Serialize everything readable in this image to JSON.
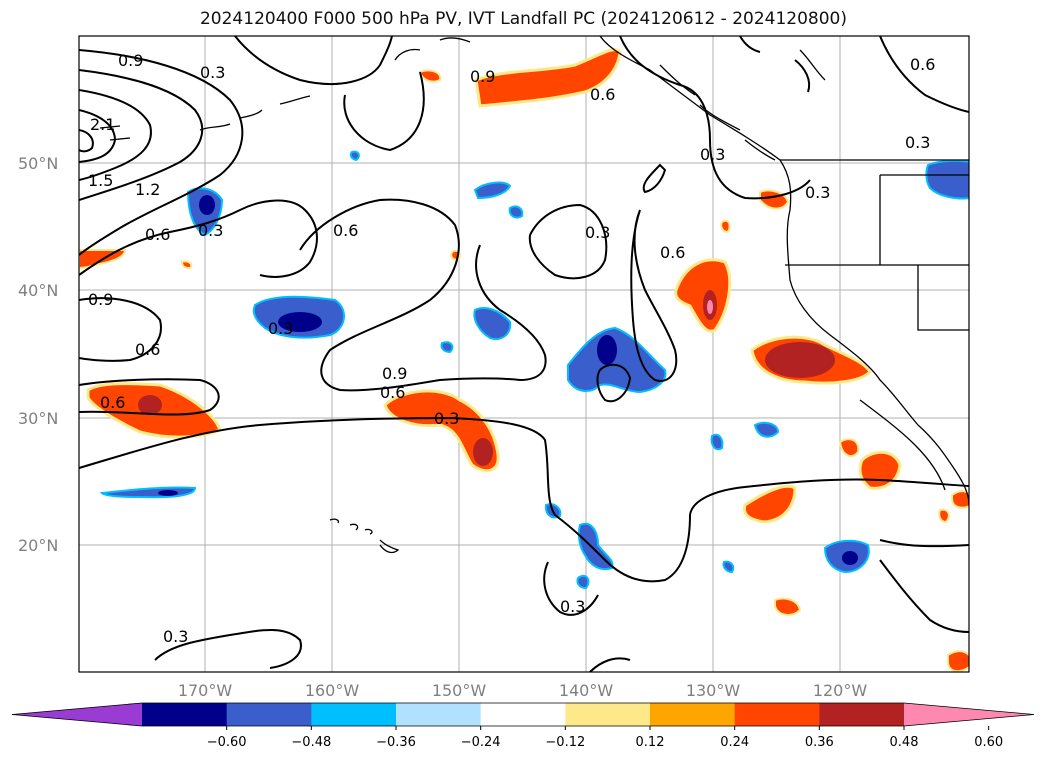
{
  "title": "2024120400 F000 500 hPa PV, IVT Landfall PC (2024120612 - 2024120800)",
  "lat_labels": [
    "50°N",
    "40°N",
    "30°N",
    "20°N"
  ],
  "lon_labels": [
    "170°W",
    "160°W",
    "150°W",
    "140°W",
    "130°W",
    "120°W"
  ],
  "contour_labels": [
    "0.9",
    "0.3",
    "0.9",
    "0.6",
    "0.6",
    "2.1",
    "1.5",
    "1.2",
    "0.6",
    "0.3",
    "0.6",
    "0.3",
    "0.6",
    "0.9",
    "0.6",
    "0.3",
    "0.6",
    "0.9",
    "0.6",
    "0.3",
    "0.3",
    "0.3",
    "0.3",
    "0.3",
    "0.3"
  ],
  "colorbar": {
    "ticks": [
      "−0.60",
      "−0.48",
      "−0.36",
      "−0.24",
      "−0.12",
      "0.12",
      "0.24",
      "0.36",
      "0.48",
      "0.60"
    ],
    "colors": [
      "#9a3bd4",
      "#00008b",
      "#3a5fcd",
      "#00bfff",
      "#b0e2ff",
      "#ffffff",
      "#fde98a",
      "#ffa500",
      "#ff4500",
      "#b22222",
      "#ff88b0"
    ]
  }
}
